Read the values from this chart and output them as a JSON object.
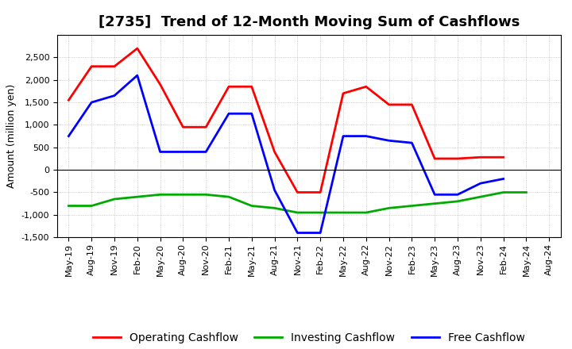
{
  "title": "[2735]  Trend of 12-Month Moving Sum of Cashflows",
  "ylabel": "Amount (million yen)",
  "xlabels": [
    "May-19",
    "Aug-19",
    "Nov-19",
    "Feb-20",
    "May-20",
    "Aug-20",
    "Nov-20",
    "Feb-21",
    "May-21",
    "Aug-21",
    "Nov-21",
    "Feb-22",
    "May-22",
    "Aug-22",
    "Nov-22",
    "Feb-23",
    "May-23",
    "Aug-23",
    "Nov-23",
    "Feb-24",
    "May-24",
    "Aug-24"
  ],
  "operating_cashflow": [
    1550,
    2300,
    2300,
    2700,
    1900,
    950,
    950,
    1850,
    1850,
    400,
    -500,
    -500,
    1700,
    1850,
    1450,
    1450,
    250,
    250,
    280,
    280,
    null,
    null
  ],
  "investing_cashflow": [
    -800,
    -800,
    -650,
    -600,
    -550,
    -550,
    -550,
    -600,
    -800,
    -850,
    -950,
    -950,
    -950,
    -950,
    -850,
    -800,
    -750,
    -700,
    -600,
    -500,
    -500,
    null
  ],
  "free_cashflow": [
    750,
    1500,
    1650,
    2100,
    400,
    400,
    400,
    1250,
    1250,
    -450,
    -1400,
    -1400,
    750,
    750,
    650,
    600,
    -550,
    -550,
    -300,
    -200,
    null,
    null
  ],
  "operating_color": "#ff0000",
  "investing_color": "#00aa00",
  "free_color": "#0000ff",
  "ylim": [
    -1500,
    3000
  ],
  "yticks": [
    -1500,
    -1000,
    -500,
    0,
    500,
    1000,
    1500,
    2000,
    2500
  ],
  "legend_labels": [
    "Operating Cashflow",
    "Investing Cashflow",
    "Free Cashflow"
  ],
  "bg_color": "#ffffff",
  "grid_color": "#888888",
  "title_fontsize": 13,
  "axis_fontsize": 9,
  "tick_fontsize": 8,
  "line_width": 2.0
}
